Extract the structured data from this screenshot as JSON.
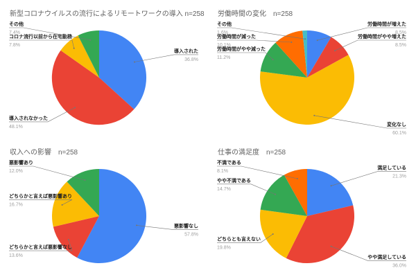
{
  "style": {
    "background": "#ffffff",
    "title_color": "#616161",
    "label_color": "#212121",
    "pct_color": "#9e9e9e",
    "line_color": "#757575",
    "palette": {
      "blue": "#4285F4",
      "red": "#EA4335",
      "yellow": "#FBBC04",
      "green": "#34A853",
      "orange": "#FF6D01",
      "teal": "#46BDC6"
    }
  },
  "chart_data": [
    {
      "type": "pie",
      "title": "新型コロナウイルスの流行によるリモートワークの導入 n=258",
      "sample_size_label": "n=258",
      "start_angle_deg": 0,
      "direction": "clockwise",
      "legend_position": "callout-labels",
      "slices": [
        {
          "label": "導入された",
          "pct": 36.8,
          "pct_label": "36.8%",
          "color": "#4285F4"
        },
        {
          "label": "導入されなかった",
          "pct": 48.1,
          "pct_label": "48.1%",
          "color": "#EA4335"
        },
        {
          "label": "コロナ流行以前から在宅勤務",
          "pct": 7.8,
          "pct_label": "7.8%",
          "color": "#FBBC04"
        },
        {
          "label": "その他",
          "pct": 7.4,
          "pct_label": "7.4%",
          "color": "#34A853"
        }
      ]
    },
    {
      "type": "pie",
      "title": "労働時間の変化　n=258",
      "sample_size_label": "n=258",
      "start_angle_deg": 0,
      "direction": "clockwise",
      "legend_position": "callout-labels",
      "slices": [
        {
          "label": "労働時間が増えた",
          "pct": 8.5,
          "pct_label": "8.5%",
          "color": "#4285F4"
        },
        {
          "label": "労働時間がやや増えた",
          "pct": 8.5,
          "pct_label": "8.5%",
          "color": "#EA4335"
        },
        {
          "label": "変化なし",
          "pct": 60.1,
          "pct_label": "60.1%",
          "color": "#FBBC04"
        },
        {
          "label": "労働時間がやや減った",
          "pct": 11.2,
          "pct_label": "11.2%",
          "color": "#34A853"
        },
        {
          "label": "労働時間が減った",
          "pct": 10.1,
          "pct_label": "10.1%",
          "color": "#FF6D01"
        },
        {
          "label": "その他",
          "pct": 1.6,
          "pct_label": "1.6%",
          "color": "#46BDC6"
        }
      ]
    },
    {
      "type": "pie",
      "title": "収入への影響　n=258",
      "sample_size_label": "n=258",
      "start_angle_deg": 0,
      "direction": "clockwise",
      "legend_position": "callout-labels",
      "slices": [
        {
          "label": "悪影響なし",
          "pct": 57.8,
          "pct_label": "57.8%",
          "color": "#4285F4"
        },
        {
          "label": "どちらかと言えば悪影響なし",
          "pct": 13.6,
          "pct_label": "13.6%",
          "color": "#EA4335"
        },
        {
          "label": "どちらかと言えば悪影響あり",
          "pct": 16.7,
          "pct_label": "16.7%",
          "color": "#FBBC04"
        },
        {
          "label": "悪影響あり",
          "pct": 12.0,
          "pct_label": "12.0%",
          "color": "#34A853"
        }
      ]
    },
    {
      "type": "pie",
      "title": "仕事の満足度　n=258",
      "sample_size_label": "n=258",
      "start_angle_deg": 0,
      "direction": "clockwise",
      "legend_position": "callout-labels",
      "slices": [
        {
          "label": "満足している",
          "pct": 21.3,
          "pct_label": "21.3%",
          "color": "#4285F4"
        },
        {
          "label": "やや満足している",
          "pct": 36.0,
          "pct_label": "36.0%",
          "color": "#EA4335"
        },
        {
          "label": "どちらとも言えない",
          "pct": 19.8,
          "pct_label": "19.8%",
          "color": "#FBBC04"
        },
        {
          "label": "やや不満である",
          "pct": 14.7,
          "pct_label": "14.7%",
          "color": "#34A853"
        },
        {
          "label": "不満である",
          "pct": 8.1,
          "pct_label": "8.1%",
          "color": "#FF6D01"
        }
      ]
    }
  ]
}
